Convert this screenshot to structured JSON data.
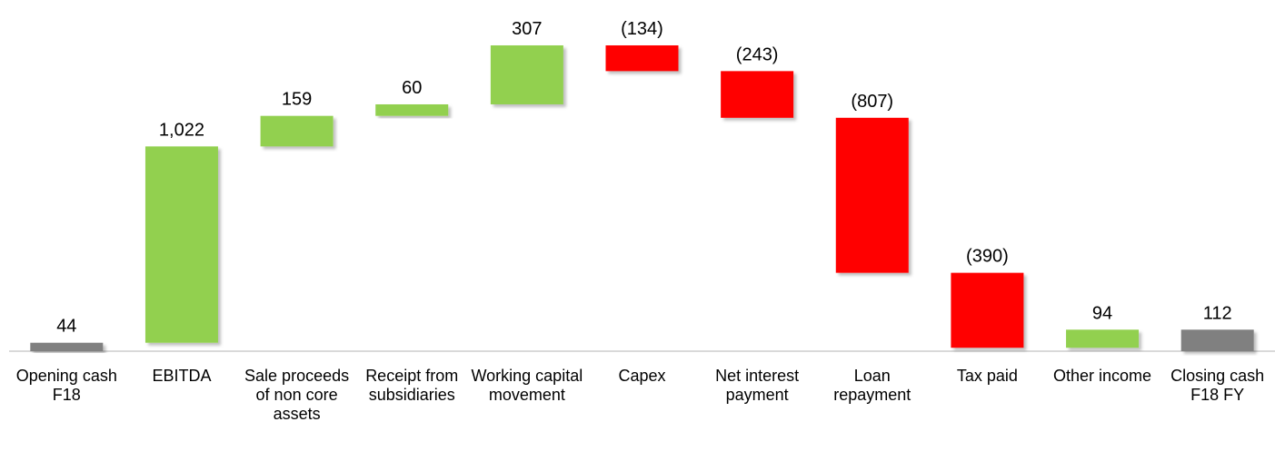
{
  "chart_data": {
    "type": "waterfall",
    "categories": [
      "Opening cash F18",
      "EBITDA",
      "Sale proceeds of non core assets",
      "Receipt from subsidiaries",
      "Working capital movement",
      "Capex",
      "Net interest payment",
      "Loan repayment",
      "Tax paid",
      "Other income",
      "Closing cash F18 FY"
    ],
    "values": [
      44,
      1022,
      159,
      60,
      307,
      -134,
      -243,
      -807,
      -390,
      94,
      112
    ],
    "value_labels": [
      "44",
      "1,022",
      "159",
      "60",
      "307",
      "(134)",
      "(243)",
      "(807)",
      "(390)",
      "94",
      "112"
    ],
    "positive_color": "#92d050",
    "negative_color": "#ff0000",
    "total_color": "#808080"
  }
}
